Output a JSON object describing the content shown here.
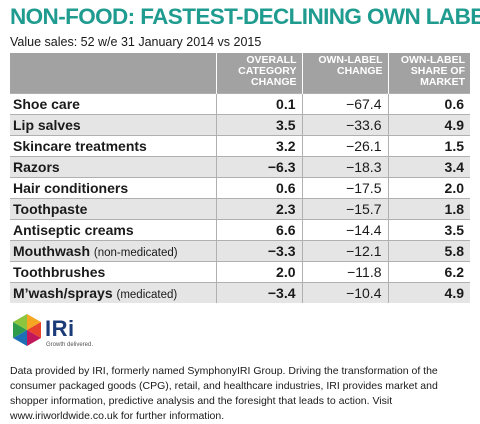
{
  "title": "NON-FOOD: FASTEST-DECLINING OWN LABEL",
  "subtitle": "Value sales: 52 w/e 31 January 2014 vs 2015",
  "columns": [
    "OVERALL CATEGORY CHANGE",
    "OWN-LABEL CHANGE",
    "OWN-LABEL SHARE OF MARKET"
  ],
  "rows": [
    {
      "name": "Shoe care",
      "note": "",
      "overall": "0.1",
      "own_change": "−67.4",
      "share": "0.6"
    },
    {
      "name": "Lip salves",
      "note": "",
      "overall": "3.5",
      "own_change": "−33.6",
      "share": "4.9"
    },
    {
      "name": "Skincare treatments",
      "note": "",
      "overall": "3.2",
      "own_change": "−26.1",
      "share": "1.5"
    },
    {
      "name": "Razors",
      "note": "",
      "overall": "−6.3",
      "own_change": "−18.3",
      "share": "3.4"
    },
    {
      "name": "Hair conditioners",
      "note": "",
      "overall": "0.6",
      "own_change": "−17.5",
      "share": "2.0"
    },
    {
      "name": "Toothpaste",
      "note": "",
      "overall": "2.3",
      "own_change": "−15.7",
      "share": "1.8"
    },
    {
      "name": "Antiseptic creams",
      "note": "",
      "overall": "6.6",
      "own_change": "−14.4",
      "share": "3.5"
    },
    {
      "name": "Mouthwash",
      "note": "(non-medicated)",
      "overall": "−3.3",
      "own_change": "−12.1",
      "share": "5.8"
    },
    {
      "name": "Toothbrushes",
      "note": "",
      "overall": "2.0",
      "own_change": "−11.8",
      "share": "6.2"
    },
    {
      "name": "M’wash/sprays",
      "note": "(medicated)",
      "overall": "−3.4",
      "own_change": "−10.4",
      "share": "4.9"
    }
  ],
  "logo": {
    "brand": "IRi",
    "tagline": "Growth delivered."
  },
  "info": "Data provided by IRI, formerly named SymphonyIRI Group. Driving the transformation of the consumer packaged goods (CPG), retail, and healthcare industries, IRI provides market and shopper information, predictive analysis and the foresight that leads to action. Visit www.iriworldwide.co.uk for further information.",
  "colors": {
    "title": "#1f9c8f",
    "header_bg": "#a2a2a2",
    "stripe": "#e5e5e5",
    "brand": "#1b3a78"
  }
}
